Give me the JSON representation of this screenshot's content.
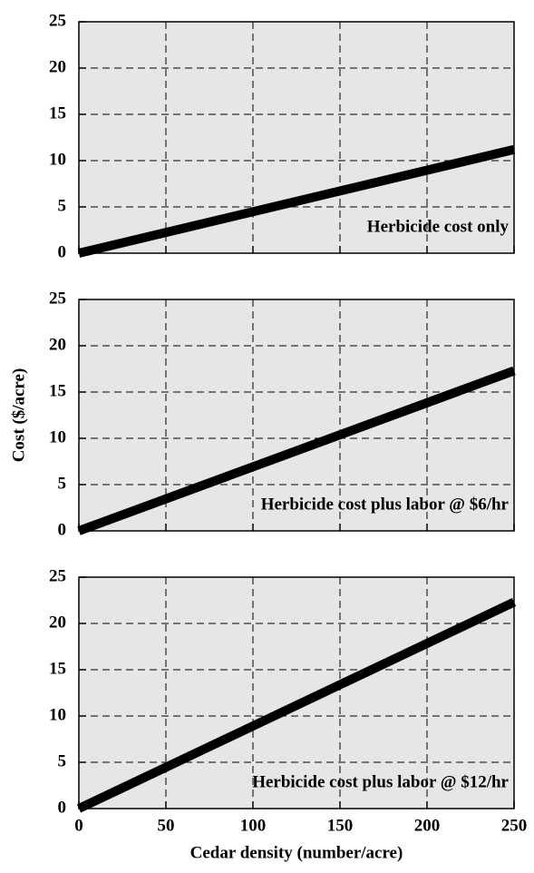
{
  "chart_data": [
    {
      "type": "line",
      "annotation": "Herbicide cost only",
      "x": [
        0,
        250
      ],
      "values": [
        0,
        11.2
      ],
      "color": "#000000",
      "xlim": [
        0,
        250
      ],
      "ylim": [
        0,
        25
      ],
      "xticks": [
        0,
        50,
        100,
        150,
        200,
        250
      ],
      "yticks": [
        0,
        5,
        10,
        15,
        20,
        25
      ],
      "grid": true
    },
    {
      "type": "line",
      "annotation": "Herbicide cost plus labor @ $6/hr",
      "ylabel": "Cost ($/acre)",
      "x": [
        0,
        250
      ],
      "values": [
        0,
        17.3
      ],
      "color": "#000000",
      "xlim": [
        0,
        250
      ],
      "ylim": [
        0,
        25
      ],
      "xticks": [
        0,
        50,
        100,
        150,
        200,
        250
      ],
      "yticks": [
        0,
        5,
        10,
        15,
        20,
        25
      ],
      "grid": true
    },
    {
      "type": "line",
      "annotation": "Herbicide cost plus labor @ $12/hr",
      "xlabel": "Cedar density (number/acre)",
      "x": [
        0,
        250
      ],
      "values": [
        0,
        22.3
      ],
      "color": "#000000",
      "xlim": [
        0,
        250
      ],
      "ylim": [
        0,
        25
      ],
      "xticks": [
        0,
        50,
        100,
        150,
        200,
        250
      ],
      "yticks": [
        0,
        5,
        10,
        15,
        20,
        25
      ],
      "grid": true
    }
  ]
}
